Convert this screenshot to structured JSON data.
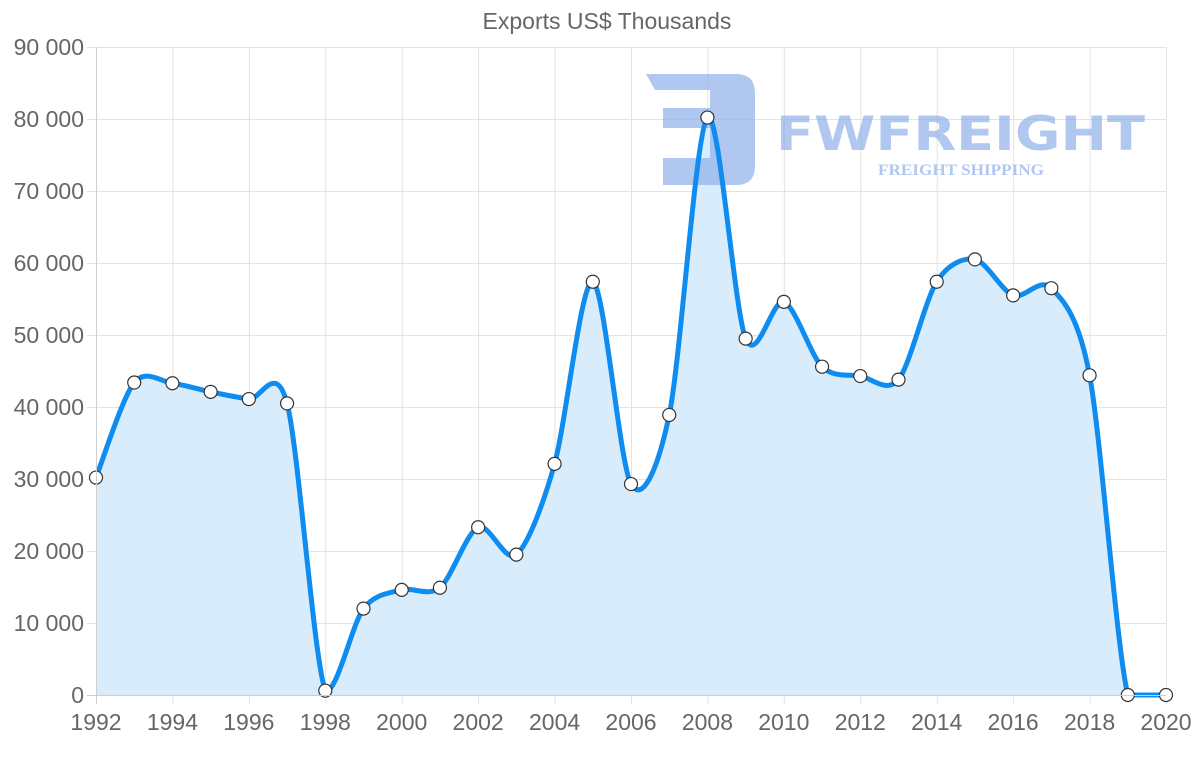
{
  "chart_data": {
    "type": "line",
    "title": "Exports US$ Thousands",
    "xlabel": "",
    "ylabel": "",
    "x": [
      1992,
      1993,
      1994,
      1995,
      1996,
      1997,
      1998,
      1999,
      2000,
      2001,
      2002,
      2003,
      2004,
      2005,
      2006,
      2007,
      2008,
      2009,
      2010,
      2011,
      2012,
      2013,
      2014,
      2015,
      2016,
      2017,
      2018,
      2019,
      2020
    ],
    "series": [
      {
        "name": "Exports US$ Thousands",
        "values": [
          30200,
          43400,
          43300,
          42100,
          41100,
          40500,
          600,
          12000,
          14600,
          14900,
          23300,
          19500,
          32100,
          57400,
          29300,
          38900,
          80200,
          49500,
          54600,
          45600,
          44300,
          43800,
          57400,
          60500,
          55500,
          56500,
          44400,
          0,
          0
        ],
        "color": "#0f8cf0",
        "fill": "#d9ecfc",
        "point_fill": "#ffffff",
        "point_border": "#333333"
      }
    ],
    "x_tick_labels": [
      "1992",
      "1994",
      "1996",
      "1998",
      "2000",
      "2002",
      "2004",
      "2006",
      "2008",
      "2010",
      "2012",
      "2014",
      "2016",
      "2018",
      "2020"
    ],
    "y_tick_labels": [
      "0",
      "10 000",
      "20 000",
      "30 000",
      "40 000",
      "50 000",
      "60 000",
      "70 000",
      "80 000",
      "90 000"
    ],
    "ylim": [
      0,
      90000
    ],
    "xlim": [
      1992,
      2020
    ],
    "y_step": 10000,
    "x_tick_step": 2,
    "grid": true,
    "legend": "none",
    "area_fill": true
  },
  "watermark": {
    "brand": "FWFREIGHT",
    "tagline": "FREIGHT SHIPPING",
    "color": "#8fb0ea"
  },
  "colors": {
    "grid": "#e3e3e3",
    "axis": "#cfcfcf",
    "text": "#666666"
  }
}
